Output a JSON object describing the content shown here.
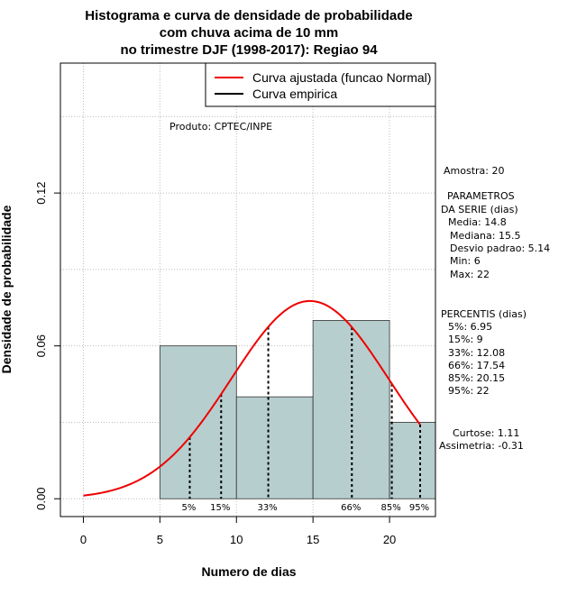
{
  "colors": {
    "bar_fill": "#b7cece",
    "normal_curve": "#ee0000",
    "empirical": "#000000",
    "grid": "#bbbbbb"
  },
  "chart_data": {
    "type": "bar",
    "title": [
      "Histograma e curva de densidade de probabilidade",
      "com chuva acima de 10 mm",
      "no trimestre DJF (1998-2017): Regiao 94"
    ],
    "xlabel": "Numero de dias",
    "ylabel": "Densidade de probabilidade",
    "xlim": [
      -1.5,
      23
    ],
    "ylim": [
      -0.007,
      0.171
    ],
    "x_ticks": [
      0,
      5,
      10,
      15,
      20
    ],
    "y_ticks": [
      0.0,
      0.06,
      0.12
    ],
    "y_tick_labels": [
      "0.00",
      "0.06",
      "0.12"
    ],
    "grid": true,
    "histogram": [
      {
        "x0": 5,
        "x1": 10,
        "density": 0.06
      },
      {
        "x0": 10,
        "x1": 15,
        "density": 0.04
      },
      {
        "x0": 15,
        "x1": 20,
        "density": 0.07
      },
      {
        "x0": 20,
        "x1": 23,
        "density": 0.03
      }
    ],
    "normal_fit": {
      "mean": 14.8,
      "sd": 5.14,
      "x_from": 0,
      "x_to": 22
    },
    "percentiles": [
      {
        "label": "5%",
        "x": 6.95
      },
      {
        "label": "15%",
        "x": 9
      },
      {
        "label": "33%",
        "x": 12.08
      },
      {
        "label": "66%",
        "x": 17.54
      },
      {
        "label": "85%",
        "x": 20.15
      },
      {
        "label": "95%",
        "x": 22
      }
    ],
    "legend": {
      "position": "top-right",
      "entries": [
        {
          "name": "Curva ajustada (funcao Normal)",
          "color": "#ee0000"
        },
        {
          "name": "Curva empirica",
          "color": "#000000"
        }
      ]
    },
    "annotation": "Produto: CPTEC/INPE",
    "stats": {
      "sample": "Amostra: 20",
      "params_title": [
        "PARAMETROS",
        "DA SERIE (dias)"
      ],
      "params": [
        "Media: 14.8",
        "Mediana: 15.5",
        "Desvio padrao: 5.14",
        "Min: 6",
        "Max: 22"
      ],
      "percentiles_title": "PERCENTIS (dias)",
      "percentiles": [
        "5%: 6.95",
        "15%: 9",
        "33%: 12.08",
        "66%: 17.54",
        "85%: 20.15",
        "95%: 22"
      ],
      "curtose": "Curtose: 1.11",
      "assimetria": "Assimetria: -0.31"
    }
  }
}
